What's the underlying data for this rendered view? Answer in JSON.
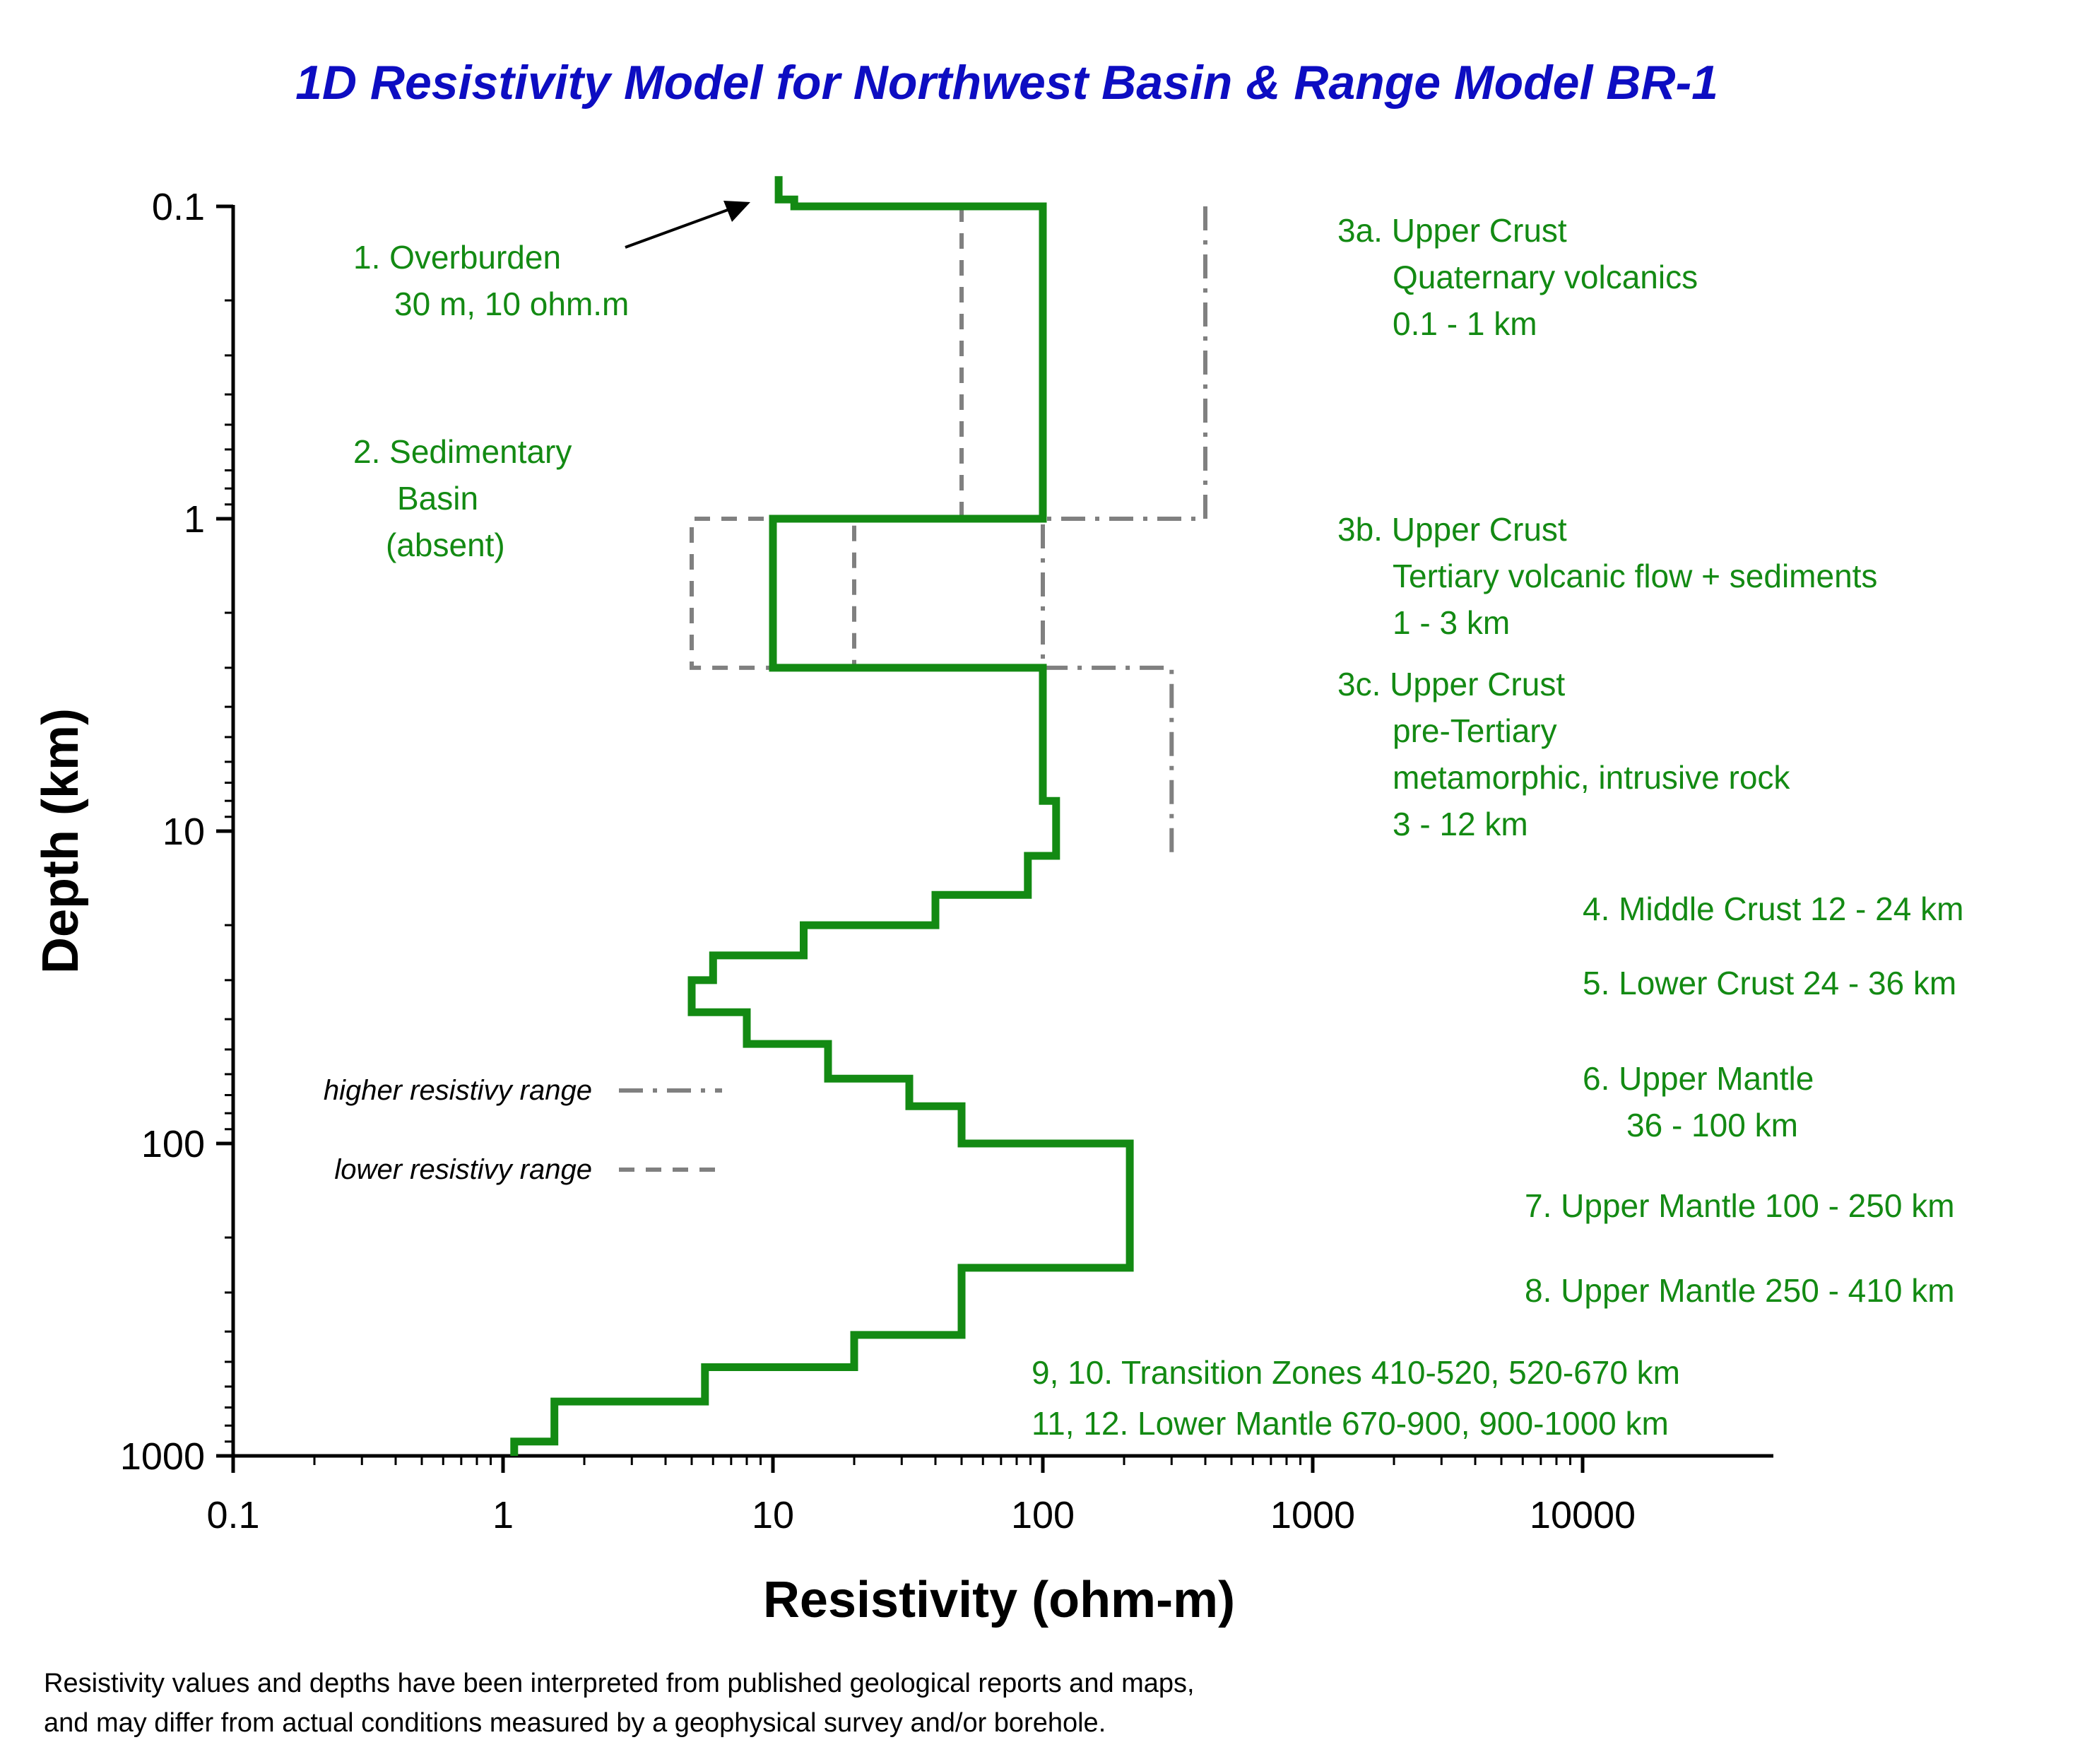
{
  "chart_data": {
    "type": "line",
    "title": "1D Resistivity Model for Northwest Basin & Range   Model BR-1",
    "xlabel": "Resistivity (ohm-m)",
    "ylabel": "Depth (km)",
    "x_scale": "log",
    "y_scale": "log",
    "y_inverted": true,
    "xlim": [
      0.1,
      5000
    ],
    "ylim": [
      0.1,
      1000
    ],
    "x_ticks": [
      0.1,
      1,
      10,
      100,
      1000,
      10000
    ],
    "x_tick_labels": [
      "0.1",
      "1",
      "10",
      "100",
      "1000",
      "10000"
    ],
    "y_ticks": [
      0.1,
      1,
      10,
      100,
      1000
    ],
    "y_tick_labels": [
      "0.1",
      "1",
      "10",
      "100",
      "1000"
    ],
    "grid": false,
    "series": [
      {
        "name": "",
        "style": "solid",
        "color": "#138a13",
        "points": [
          [
            10.5,
            0.08
          ],
          [
            10.5,
            0.095
          ],
          [
            12,
            0.095
          ],
          [
            12,
            0.1
          ],
          [
            100,
            0.1
          ],
          [
            100,
            1
          ],
          [
            10,
            1
          ],
          [
            10,
            3
          ],
          [
            100,
            3
          ],
          [
            100,
            8
          ],
          [
            112,
            8
          ],
          [
            112,
            12
          ],
          [
            88,
            12
          ],
          [
            88,
            16
          ],
          [
            40,
            16
          ],
          [
            40,
            20
          ],
          [
            13,
            20
          ],
          [
            13,
            25
          ],
          [
            6,
            25
          ],
          [
            6,
            30
          ],
          [
            5,
            30
          ],
          [
            5,
            38
          ],
          [
            8,
            38
          ],
          [
            8,
            48
          ],
          [
            16,
            48
          ],
          [
            16,
            62
          ],
          [
            32,
            62
          ],
          [
            32,
            76
          ],
          [
            50,
            76
          ],
          [
            50,
            100
          ],
          [
            210,
            100
          ],
          [
            210,
            250
          ],
          [
            50,
            250
          ],
          [
            50,
            410
          ],
          [
            20,
            410
          ],
          [
            20,
            520
          ],
          [
            5.6,
            520
          ],
          [
            5.6,
            670
          ],
          [
            1.55,
            670
          ],
          [
            1.55,
            900
          ],
          [
            1.1,
            900
          ],
          [
            1.1,
            1000
          ]
        ]
      },
      {
        "name": "higher resistivy range",
        "style": "dash-dot",
        "color": "#808080",
        "points": [
          [
            400,
            0.1
          ],
          [
            400,
            1
          ],
          [
            100,
            1
          ],
          [
            100,
            3
          ],
          [
            300,
            3
          ],
          [
            300,
            12
          ]
        ]
      },
      {
        "name": "lower resistivy range",
        "style": "dashed",
        "color": "#808080",
        "points": [
          [
            50,
            0.1
          ],
          [
            50,
            1
          ],
          [
            5,
            1
          ],
          [
            5,
            3
          ],
          [
            20,
            3
          ],
          [
            20,
            1
          ]
        ]
      }
    ],
    "legend": [
      {
        "label": "higher resistivy range",
        "style": "dash-dot",
        "color": "#808080"
      },
      {
        "label": "lower resistivy range",
        "style": "dashed",
        "color": "#808080"
      }
    ],
    "annotations": [
      {
        "lines": [
          "1. Overburden",
          "30 m, 10 ohm.m"
        ],
        "color": "#138a13"
      },
      {
        "lines": [
          "2. Sedimentary",
          "Basin",
          "(absent)"
        ],
        "color": "#138a13"
      },
      {
        "lines": [
          "3a. Upper Crust",
          "Quaternary volcanics",
          "0.1 - 1 km"
        ],
        "color": "#138a13"
      },
      {
        "lines": [
          "3b. Upper Crust",
          "Tertiary volcanic flow + sediments",
          "1 - 3 km"
        ],
        "color": "#138a13"
      },
      {
        "lines": [
          "3c. Upper Crust",
          "pre-Tertiary",
          "metamorphic, intrusive rock",
          "3 - 12 km"
        ],
        "color": "#138a13"
      },
      {
        "lines": [
          "4. Middle Crust 12 - 24 km"
        ],
        "color": "#138a13"
      },
      {
        "lines": [
          "5. Lower Crust 24 - 36 km"
        ],
        "color": "#138a13"
      },
      {
        "lines": [
          "6. Upper Mantle",
          "36 - 100 km"
        ],
        "color": "#138a13"
      },
      {
        "lines": [
          "7. Upper Mantle 100 - 250 km"
        ],
        "color": "#138a13"
      },
      {
        "lines": [
          "8. Upper Mantle  250 - 410 km"
        ],
        "color": "#138a13"
      },
      {
        "lines": [
          "9, 10. Transition Zones 410-520, 520-670 km"
        ],
        "color": "#138a13"
      },
      {
        "lines": [
          "11, 12. Lower Mantle 670-900, 900-1000 km"
        ],
        "color": "#138a13"
      }
    ],
    "footnote": [
      "Resistivity values and depths have been interpreted from published geological reports and maps,",
      " and may differ from actual conditions measured by a geophysical survey and/or borehole."
    ]
  },
  "colors": {
    "title": "#0d0dc2",
    "model_line": "#138a13",
    "range_lines": "#808080",
    "annotation_text": "#138a13",
    "axis": "#000000"
  }
}
